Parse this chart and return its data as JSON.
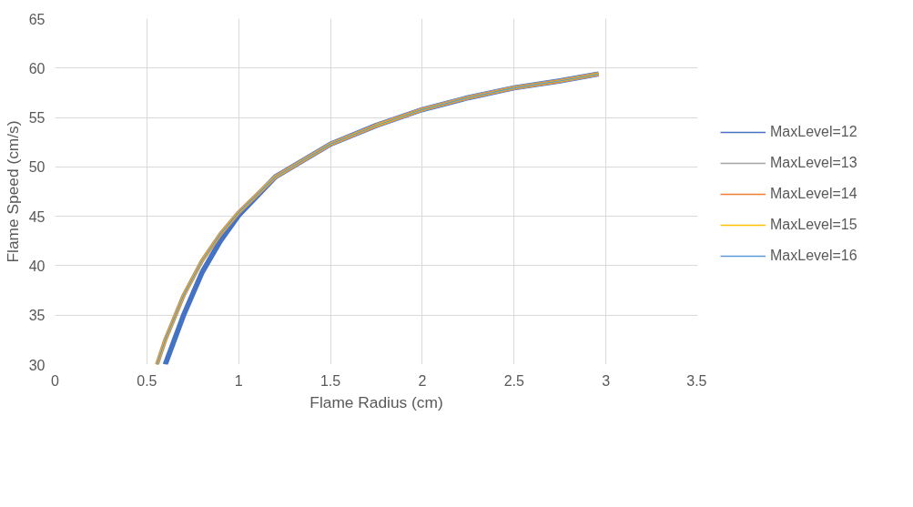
{
  "chart_data": {
    "type": "line",
    "xlabel": "Flame Radius (cm)",
    "ylabel": "Flame Speed (cm/s)",
    "xlim": [
      0,
      3.5
    ],
    "xticks": [
      0,
      0.5,
      1,
      1.5,
      2,
      2.5,
      3,
      3.5
    ],
    "ylim": [
      30,
      65
    ],
    "yticks": [
      30,
      35,
      40,
      45,
      50,
      55,
      60,
      65
    ],
    "grid": true,
    "legend": "right",
    "marker": "none",
    "line_style": "solid",
    "series": [
      {
        "name": "MaxLevel=12",
        "color": "#4472c4",
        "x": [
          0.6,
          0.65,
          0.7,
          0.8,
          0.9,
          1.0,
          1.2,
          1.5,
          1.75,
          2.0,
          2.25,
          2.5,
          2.75,
          2.96
        ],
        "values": [
          30,
          32.5,
          35,
          39.3,
          42.5,
          45.1,
          49,
          52.3,
          54.2,
          55.8,
          57,
          58,
          58.7,
          59.4
        ]
      },
      {
        "name": "MaxLevel=13",
        "color": "#a5a5a5",
        "x": [
          0.555,
          0.6,
          0.7,
          0.8,
          0.9,
          1.0,
          1.2,
          1.5,
          1.75,
          2.0,
          2.25,
          2.5,
          2.75,
          2.96
        ],
        "values": [
          30,
          32.5,
          37,
          40.5,
          43.2,
          45.4,
          49,
          52.3,
          54.2,
          55.8,
          57,
          58,
          58.7,
          59.4
        ]
      },
      {
        "name": "MaxLevel=14",
        "color": "#ed7d31",
        "x": [
          0.555,
          0.6,
          0.7,
          0.8,
          0.9,
          1.0,
          1.2,
          1.5,
          1.75,
          2.0,
          2.25,
          2.5,
          2.75,
          2.96
        ],
        "values": [
          30,
          32.5,
          37,
          40.5,
          43.2,
          45.4,
          49,
          52.3,
          54.2,
          55.8,
          57,
          58,
          58.7,
          59.4
        ]
      },
      {
        "name": "MaxLevel=15",
        "color": "#ffc000",
        "x": [
          0.555,
          0.6,
          0.7,
          0.8,
          0.9,
          1.0,
          1.2,
          1.5,
          1.75,
          2.0,
          2.25,
          2.5,
          2.75,
          2.96
        ],
        "values": [
          30,
          32.5,
          37,
          40.5,
          43.2,
          45.4,
          49,
          52.3,
          54.2,
          55.8,
          57,
          58,
          58.7,
          59.4
        ]
      },
      {
        "name": "MaxLevel=16",
        "color": "#5b9bd5",
        "x": [
          0.555,
          0.6,
          0.7,
          0.8,
          0.9,
          1.0,
          1.2,
          1.5,
          1.75,
          2.0,
          2.25,
          2.5,
          2.75,
          2.96
        ],
        "values": [
          30,
          32.5,
          37,
          40.5,
          43.2,
          45.4,
          49,
          52.3,
          54.2,
          55.8,
          57,
          58,
          58.7,
          59.4
        ]
      }
    ]
  }
}
